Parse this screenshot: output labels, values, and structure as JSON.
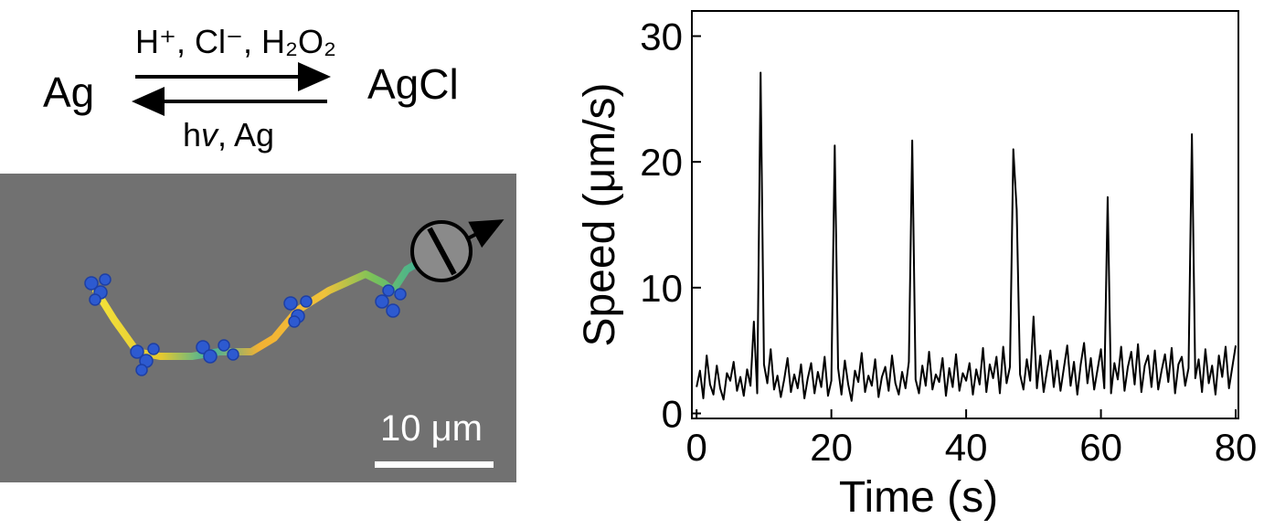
{
  "scheme": {
    "left": "Ag",
    "right": "AgCl",
    "upper": "H⁺, Cl⁻, H₂O₂",
    "lower": [
      "h",
      "v",
      ", Ag"
    ],
    "scale_bar": "10 μm"
  },
  "chart_data": {
    "type": "line",
    "x_label": "Time (s)",
    "y_label": "Speed (μm/s)",
    "color": "#000000",
    "xlim": [
      -0.7,
      80.4
    ],
    "ylim": [
      -0.4,
      32
    ],
    "xticks": [
      0,
      20,
      40,
      60,
      80
    ],
    "yticks": [
      0,
      10,
      20,
      30
    ],
    "x": [
      0,
      0.5,
      1,
      1.5,
      2,
      2.5,
      3,
      3.5,
      4,
      4.5,
      5,
      5.5,
      6,
      6.5,
      7,
      7.5,
      8,
      8.5,
      9,
      9.5,
      10,
      10.5,
      11,
      11.5,
      12,
      12.5,
      13,
      13.5,
      14,
      14.5,
      15,
      15.5,
      16,
      16.5,
      17,
      17.5,
      18,
      18.5,
      19,
      19.5,
      20,
      20.5,
      21,
      21.5,
      22,
      22.5,
      23,
      23.5,
      24,
      24.5,
      25,
      25.5,
      26,
      26.5,
      27,
      27.5,
      28,
      28.5,
      29,
      29.5,
      30,
      30.5,
      31,
      31.5,
      32,
      32.5,
      33,
      33.5,
      34,
      34.5,
      35,
      35.5,
      36,
      36.5,
      37,
      37.5,
      38,
      38.5,
      39,
      39.5,
      40,
      40.5,
      41,
      41.5,
      42,
      42.5,
      43,
      43.5,
      44,
      44.5,
      45,
      45.5,
      46,
      46.5,
      47,
      47.5,
      48,
      48.5,
      49,
      49.5,
      50,
      50.5,
      51,
      51.5,
      52,
      52.5,
      53,
      53.5,
      54,
      54.5,
      55,
      55.5,
      56,
      56.5,
      57,
      57.5,
      58,
      58.5,
      59,
      59.5,
      60,
      60.5,
      61,
      61.5,
      62,
      62.5,
      63,
      63.5,
      64,
      64.5,
      65,
      65.5,
      66,
      66.5,
      67,
      67.5,
      68,
      68.5,
      69,
      69.5,
      70,
      70.5,
      71,
      71.5,
      72,
      72.5,
      73,
      73.5,
      74,
      74.5,
      75,
      75.5,
      76,
      76.5,
      77,
      77.5,
      78,
      78.5,
      79,
      79.5,
      80
    ],
    "values": [
      2.1,
      3.4,
      1.2,
      4.6,
      2.3,
      1.5,
      3.8,
      2.0,
      1.1,
      3.2,
      2.6,
      4.1,
      1.8,
      2.9,
      1.4,
      3.5,
      2.2,
      7.3,
      1.6,
      27.1,
      3.9,
      2.4,
      5.1,
      1.9,
      3.0,
      1.3,
      2.7,
      4.4,
      1.7,
      3.1,
      2.0,
      3.9,
      1.2,
      2.8,
      4.0,
      1.6,
      3.3,
      2.1,
      4.5,
      1.4,
      2.6,
      21.3,
      3.6,
      1.5,
      4.2,
      2.3,
      1.0,
      3.4,
      2.5,
      4.8,
      1.7,
      3.0,
      2.2,
      4.3,
      1.3,
      2.9,
      3.7,
      1.8,
      4.6,
      2.4,
      1.5,
      3.3,
      2.0,
      4.1,
      21.7,
      2.7,
      1.6,
      3.8,
      2.2,
      4.9,
      1.9,
      3.1,
      2.5,
      4.4,
      1.4,
      3.6,
      2.1,
      4.7,
      1.8,
      3.2,
      2.6,
      4.0,
      1.5,
      3.5,
      2.3,
      5.2,
      1.7,
      3.9,
      2.8,
      4.5,
      1.6,
      5.3,
      2.4,
      3.7,
      21.0,
      16.2,
      3.1,
      1.9,
      4.3,
      2.6,
      7.7,
      2.0,
      4.6,
      1.7,
      3.4,
      5.0,
      2.1,
      4.2,
      1.8,
      3.6,
      5.4,
      2.2,
      4.1,
      1.5,
      3.9,
      5.6,
      2.4,
      4.4,
      1.9,
      3.5,
      5.1,
      2.0,
      17.2,
      1.6,
      4.0,
      2.7,
      5.3,
      1.8,
      3.7,
      4.9,
      2.3,
      5.5,
      1.7,
      3.8,
      4.6,
      2.1,
      5.0,
      1.9,
      3.4,
      4.7,
      2.5,
      5.2,
      1.6,
      3.9,
      4.5,
      2.2,
      3.6,
      22.2,
      2.8,
      4.3,
      1.7,
      5.1,
      2.4,
      3.8,
      1.5,
      4.6,
      2.9,
      5.3,
      2.0,
      3.7,
      5.4
    ]
  }
}
